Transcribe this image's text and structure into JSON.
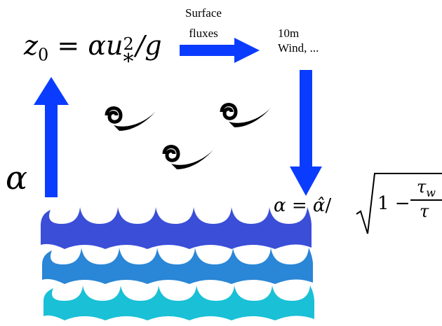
{
  "formula_z0": {
    "lhs_var": "z",
    "lhs_sub": "0",
    "eq": "=",
    "alpha": "α",
    "u": "u",
    "u_sup": "2",
    "u_sub": "*",
    "slash_g": "/g"
  },
  "flux_label": {
    "line1": "Surface",
    "line2": "fluxes"
  },
  "wind_label": {
    "line1": "10m",
    "line2": "Wind, ..."
  },
  "alpha_symbol": "α",
  "formula_alpha": {
    "lhs": "α",
    "eq": "=",
    "alpha_hat": "α̂",
    "slash": "/",
    "one_minus": "1 −",
    "num": "τ",
    "num_sub": "w",
    "den": "τ"
  },
  "colors": {
    "arrow": "#0a3cff",
    "wave_top": "#3a4ed8",
    "wave_mid": "#2a86d6",
    "wave_bottom": "#19c0d6",
    "swirl": "#000000"
  },
  "icons": [
    "wind-swirl-icon",
    "wind-swirl-icon",
    "wind-swirl-icon",
    "ocean-wave-icon"
  ]
}
